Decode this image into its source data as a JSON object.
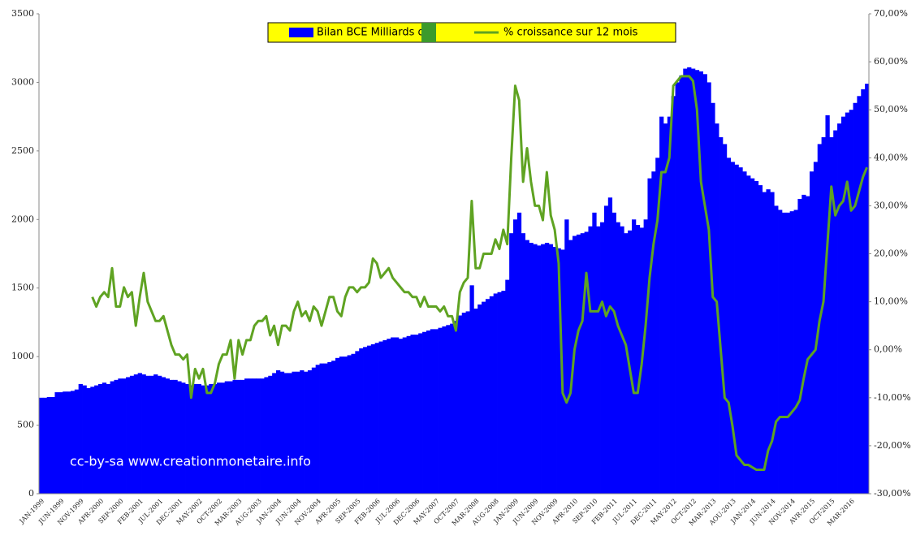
{
  "chart_data": {
    "type": "bar",
    "annotation": "cc-by-sa www.creationmonetaire.info",
    "categories": [
      "JAN-1999",
      null,
      null,
      null,
      null,
      "JUN-1999",
      null,
      null,
      null,
      null,
      "NOV-1999",
      null,
      null,
      null,
      null,
      "APR-2000",
      null,
      null,
      null,
      null,
      "SEP-2000",
      null,
      null,
      null,
      null,
      "FEB-2001",
      null,
      null,
      null,
      null,
      "JUL-2001",
      null,
      null,
      null,
      null,
      "DEC-2001",
      null,
      null,
      null,
      null,
      "MAY-2002",
      null,
      null,
      null,
      null,
      "OCT-2002",
      null,
      null,
      null,
      null,
      "MAR-2003",
      null,
      null,
      null,
      null,
      "AUG-2003",
      null,
      null,
      null,
      null,
      "JAN-2004",
      null,
      null,
      null,
      null,
      "JUN-2004",
      null,
      null,
      null,
      null,
      "NOV-2004",
      null,
      null,
      null,
      null,
      "APR-2005",
      null,
      null,
      null,
      null,
      "SEP-2005",
      null,
      null,
      null,
      null,
      "FEB-2006",
      null,
      null,
      null,
      null,
      "JUL-2006",
      null,
      null,
      null,
      null,
      "DEC-2006",
      null,
      null,
      null,
      null,
      "MAY-2007",
      null,
      null,
      null,
      null,
      "OCT-2007",
      null,
      null,
      null,
      null,
      "MAR-2008",
      null,
      null,
      null,
      null,
      "AUG-2008",
      null,
      null,
      null,
      null,
      "JAN-2009",
      null,
      null,
      null,
      null,
      "JUN-2009",
      null,
      null,
      null,
      null,
      "NOV-2009",
      null,
      null,
      null,
      null,
      "APR-2010",
      null,
      null,
      null,
      null,
      "SEP-2010",
      null,
      null,
      null,
      null,
      "FEB-2011",
      null,
      null,
      null,
      null,
      "JUL-2011",
      null,
      null,
      null,
      null,
      "DEC-2011",
      null,
      null,
      null,
      null,
      "MAY-2012",
      null,
      null,
      null,
      null,
      "OCT-2012",
      null,
      null,
      null,
      null,
      "MAR-2013",
      null,
      null,
      null,
      null,
      "AOU-2013",
      null,
      null,
      null,
      null,
      "JAN-2014",
      null,
      null,
      null,
      null,
      "JUN-2014",
      null,
      null,
      null,
      null,
      "NOV-2014",
      null,
      null,
      null,
      null,
      "AVR-2015",
      null,
      null,
      null,
      null,
      "OCT-2015",
      null,
      null,
      null,
      null,
      "MAR-2016",
      null,
      null,
      null,
      null
    ],
    "series": [
      {
        "name": "Bilan BCE Milliards d'€",
        "color": "#0000ff",
        "values": [
          700,
          700,
          705,
          705,
          740,
          740,
          745,
          745,
          750,
          760,
          800,
          790,
          770,
          780,
          790,
          800,
          810,
          800,
          820,
          830,
          840,
          840,
          850,
          860,
          870,
          880,
          870,
          860,
          860,
          870,
          860,
          850,
          840,
          830,
          830,
          820,
          810,
          800,
          790,
          800,
          800,
          790,
          790,
          800,
          800,
          810,
          810,
          820,
          820,
          830,
          830,
          830,
          840,
          840,
          840,
          840,
          840,
          850,
          860,
          880,
          900,
          890,
          880,
          880,
          890,
          890,
          900,
          890,
          900,
          920,
          940,
          950,
          950,
          960,
          970,
          990,
          1000,
          1000,
          1010,
          1020,
          1040,
          1060,
          1070,
          1080,
          1090,
          1100,
          1110,
          1120,
          1130,
          1140,
          1140,
          1130,
          1140,
          1150,
          1160,
          1160,
          1170,
          1180,
          1190,
          1200,
          1200,
          1210,
          1220,
          1230,
          1240,
          1260,
          1300,
          1320,
          1330,
          1520,
          1350,
          1380,
          1400,
          1420,
          1440,
          1460,
          1470,
          1480,
          1560,
          1900,
          2000,
          2050,
          1900,
          1850,
          1830,
          1820,
          1810,
          1820,
          1830,
          1820,
          1800,
          1790,
          1780,
          2000,
          1850,
          1880,
          1890,
          1900,
          1910,
          1950,
          2050,
          1950,
          1980,
          2100,
          2160,
          2050,
          1980,
          1950,
          1900,
          1920,
          2000,
          1960,
          1940,
          2000,
          2300,
          2350,
          2450,
          2750,
          2700,
          2750,
          2900,
          3000,
          3050,
          3100,
          3110,
          3100,
          3090,
          3080,
          3060,
          3000,
          2850,
          2700,
          2600,
          2550,
          2450,
          2420,
          2400,
          2380,
          2350,
          2320,
          2300,
          2280,
          2250,
          2200,
          2220,
          2200,
          2100,
          2070,
          2050,
          2050,
          2060,
          2070,
          2150,
          2180,
          2170,
          2350,
          2420,
          2550,
          2600,
          2760,
          2600,
          2650,
          2700,
          2750,
          2780,
          2800,
          2850,
          2900,
          2950,
          2990
        ]
      },
      {
        "name": "% croissance sur 12 mois",
        "color": "#5fa322",
        "type": "line",
        "axis": "y2",
        "values": [
          null,
          null,
          null,
          null,
          null,
          null,
          null,
          null,
          null,
          null,
          null,
          null,
          null,
          11,
          9,
          11,
          12,
          11,
          17,
          9,
          9,
          13,
          11,
          12,
          5,
          11,
          16,
          10,
          8,
          6,
          6,
          7,
          4,
          1,
          -1,
          -1,
          -2,
          -1,
          -10,
          -4,
          -6,
          -4,
          -9,
          -9,
          -7,
          -3,
          -1,
          -1,
          2,
          -6,
          2,
          -1,
          2,
          2,
          5,
          6,
          6,
          7,
          3,
          5,
          1,
          5,
          5,
          4,
          8,
          10,
          7,
          8,
          6,
          9,
          8,
          5,
          8,
          11,
          11,
          8,
          7,
          11,
          13,
          13,
          12,
          13,
          13,
          14,
          19,
          18,
          15,
          16,
          17,
          15,
          14,
          13,
          12,
          12,
          11,
          11,
          9,
          11,
          9,
          9,
          9,
          8,
          9,
          7,
          7,
          4,
          12,
          14,
          15,
          31,
          17,
          17,
          20,
          20,
          20,
          23,
          21,
          25,
          22,
          40,
          55,
          52,
          35,
          42,
          35,
          30,
          30,
          27,
          37,
          28,
          25,
          18,
          -9,
          -11,
          -9,
          0,
          4,
          6,
          16,
          8,
          8,
          8,
          10,
          7,
          9,
          8,
          5,
          3,
          1,
          -4,
          -9,
          -9,
          -3,
          5,
          15,
          22,
          27,
          37,
          37,
          40,
          55,
          56,
          57,
          57,
          57,
          56,
          50,
          35,
          30,
          25,
          11,
          10,
          0,
          -10,
          -11,
          -16,
          -22,
          -23,
          -24,
          -24,
          -24.5,
          -25,
          -25,
          -25,
          -21,
          -19,
          -15,
          -14,
          -14,
          -14,
          -13,
          -12,
          -10.5,
          -6,
          -2,
          -1,
          0,
          6,
          10,
          22,
          34,
          28,
          30,
          31,
          35,
          29,
          30,
          33,
          36,
          38
        ]
      }
    ],
    "ylim": [
      0,
      3500
    ],
    "yticks": [
      0,
      500,
      1000,
      1500,
      2000,
      2500,
      3000,
      3500
    ],
    "y2lim": [
      -30,
      70
    ],
    "y2ticks": [
      {
        "value": -30,
        "label": "-30,00%"
      },
      {
        "value": -20,
        "label": "-20,00%"
      },
      {
        "value": -10,
        "label": "-10,00%"
      },
      {
        "value": 0,
        "label": "0,00%"
      },
      {
        "value": 10,
        "label": "10,00%"
      },
      {
        "value": 20,
        "label": "20,00%"
      },
      {
        "value": 30,
        "label": "30,00%"
      },
      {
        "value": 40,
        "label": "40,00%"
      },
      {
        "value": 50,
        "label": "50,00%"
      },
      {
        "value": 60,
        "label": "60,00%"
      },
      {
        "value": 70,
        "label": "70,00%"
      }
    ],
    "grid": false,
    "legend": "top"
  }
}
